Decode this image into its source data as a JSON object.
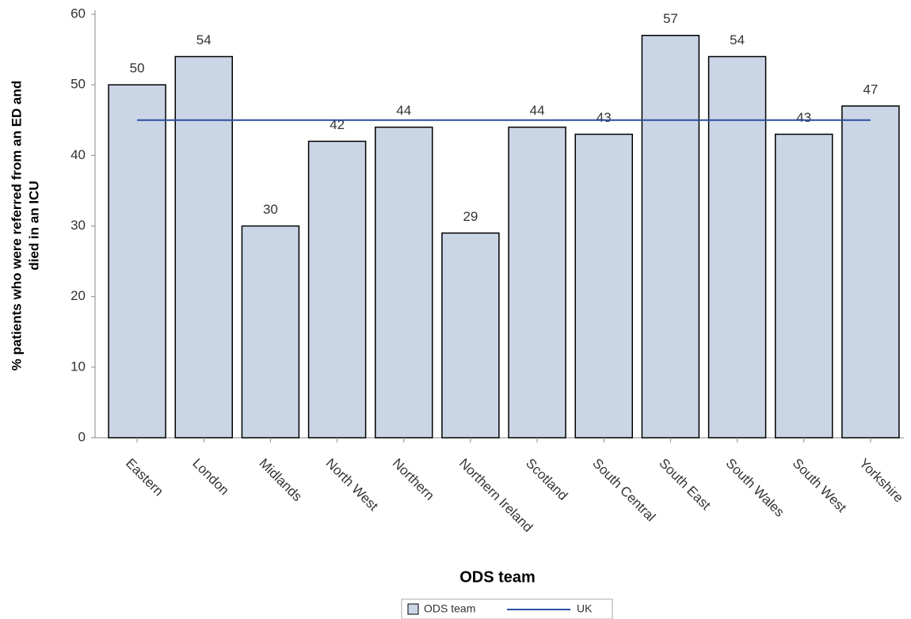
{
  "chart_data": {
    "type": "bar",
    "xlabel": "ODS team",
    "ylabel": [
      "% patients who were referred from an ED and",
      "died in an ICU"
    ],
    "categories": [
      "Eastern",
      "London",
      "Midlands",
      "North West",
      "Northern",
      "Northern Ireland",
      "Scotland",
      "South Central",
      "South East",
      "South Wales",
      "South West",
      "Yorkshire"
    ],
    "series": [
      {
        "name": "ODS team",
        "color": "#cad5e5",
        "values": [
          50,
          54,
          30,
          42,
          44,
          29,
          44,
          43,
          57,
          54,
          43,
          47
        ]
      }
    ],
    "reference_line": {
      "name": "UK",
      "value": 45,
      "color": "#2a4ea0"
    },
    "ylim": [
      0,
      60
    ],
    "yticks": [
      0,
      10,
      20,
      30,
      40,
      50,
      60
    ],
    "legend": "bottom"
  }
}
